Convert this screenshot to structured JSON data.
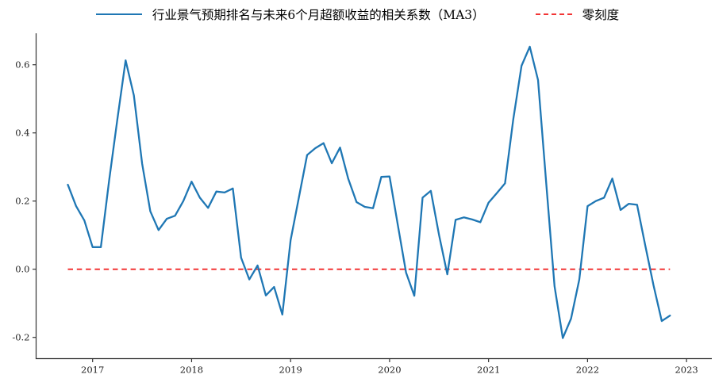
{
  "legend": {
    "series1_label": "行业景气预期排名与未来6个月超额收益的相关系数（MA3）",
    "series2_label": "零刻度"
  },
  "colors": {
    "line": "#1f77b4",
    "zero_line": "#f23535",
    "axis": "#333333",
    "tick_text": "#222222"
  },
  "chart_data": {
    "type": "line",
    "title": "",
    "xlabel": "",
    "ylabel": "",
    "legend_position": "top-outside",
    "grid": false,
    "x_unit": "month",
    "x_tick_labels": [
      "2017",
      "2018",
      "2019",
      "2020",
      "2021",
      "2022",
      "2023"
    ],
    "y_ticks": [
      -0.2,
      0.0,
      0.2,
      0.4,
      0.6
    ],
    "ylim": [
      -0.26,
      0.69
    ],
    "series": [
      {
        "name": "行业景气预期排名与未来6个月超额收益的相关系数（MA3）",
        "color": "#1f77b4",
        "style": "solid",
        "x": [
          "2016-10",
          "2016-11",
          "2016-12",
          "2017-01",
          "2017-02",
          "2017-03",
          "2017-04",
          "2017-05",
          "2017-06",
          "2017-07",
          "2017-08",
          "2017-09",
          "2017-10",
          "2017-11",
          "2017-12",
          "2018-01",
          "2018-02",
          "2018-03",
          "2018-04",
          "2018-05",
          "2018-06",
          "2018-07",
          "2018-08",
          "2018-09",
          "2018-10",
          "2018-11",
          "2018-12",
          "2019-01",
          "2019-02",
          "2019-03",
          "2019-04",
          "2019-05",
          "2019-06",
          "2019-07",
          "2019-08",
          "2019-09",
          "2019-10",
          "2019-11",
          "2019-12",
          "2020-01",
          "2020-02",
          "2020-03",
          "2020-04",
          "2020-05",
          "2020-06",
          "2020-07",
          "2020-08",
          "2020-09",
          "2020-10",
          "2020-11",
          "2020-12",
          "2021-01",
          "2021-02",
          "2021-03",
          "2021-04",
          "2021-05",
          "2021-06",
          "2021-07",
          "2021-08",
          "2021-09",
          "2021-10",
          "2021-11",
          "2021-12",
          "2022-01",
          "2022-02",
          "2022-03",
          "2022-04",
          "2022-05",
          "2022-06",
          "2022-07",
          "2022-08",
          "2022-09",
          "2022-10",
          "2022-11"
        ],
        "values": [
          0.248,
          0.185,
          0.143,
          0.065,
          0.065,
          0.26,
          0.44,
          0.613,
          0.51,
          0.31,
          0.17,
          0.115,
          0.148,
          0.157,
          0.2,
          0.257,
          0.21,
          0.18,
          0.228,
          0.225,
          0.237,
          0.034,
          -0.03,
          0.011,
          -0.077,
          -0.052,
          -0.133,
          0.085,
          0.21,
          0.335,
          0.355,
          0.37,
          0.311,
          0.357,
          0.265,
          0.197,
          0.183,
          0.179,
          0.271,
          0.272,
          0.13,
          -0.01,
          -0.078,
          0.21,
          0.23,
          0.1,
          -0.015,
          0.145,
          0.152,
          0.146,
          0.138,
          0.195,
          0.223,
          0.252,
          0.44,
          0.597,
          0.653,
          0.555,
          0.25,
          -0.05,
          -0.202,
          -0.145,
          -0.03,
          0.185,
          0.2,
          0.21,
          0.266,
          0.174,
          0.192,
          0.189,
          0.07,
          -0.047,
          -0.152,
          -0.136
        ]
      },
      {
        "name": "零刻度",
        "color": "#f23535",
        "style": "dashed",
        "constant_value": 0.0
      }
    ]
  }
}
